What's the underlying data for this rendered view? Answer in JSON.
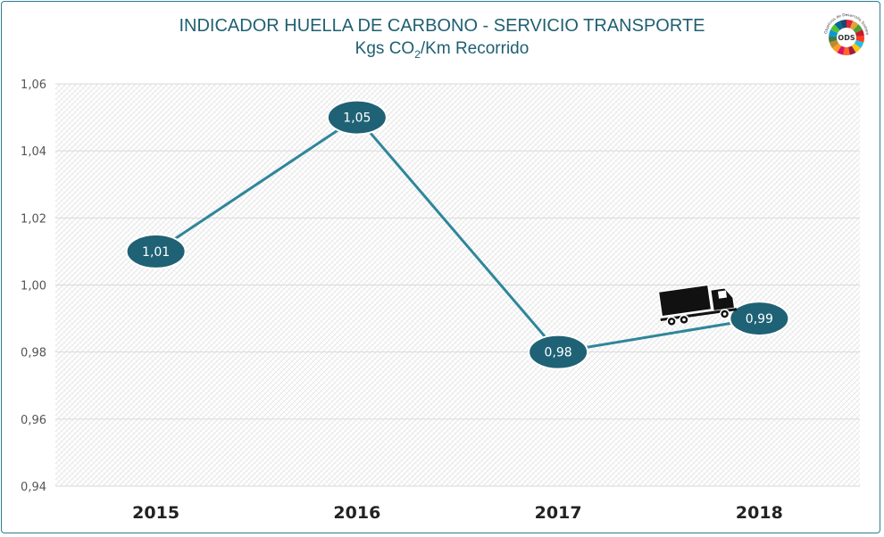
{
  "chart_data": {
    "type": "line",
    "title": "INDICADOR HUELLA DE CARBONO - SERVICIO TRANSPORTE",
    "subtitle_parts": {
      "before": "Kgs CO",
      "sub": "2",
      "after": "/Km Recorrido"
    },
    "categories": [
      "2015",
      "2016",
      "2017",
      "2018"
    ],
    "series": [
      {
        "values": [
          1.01,
          1.05,
          0.98,
          0.99
        ],
        "labels": [
          "1,01",
          "1,05",
          "0,98",
          "0,99"
        ]
      }
    ],
    "ylim": [
      0.94,
      1.06
    ],
    "yticks": [
      "0,94",
      "0,96",
      "0,98",
      "1,00",
      "1,02",
      "1,04",
      "1,06"
    ],
    "ytick_values": [
      0.94,
      0.96,
      0.98,
      1.0,
      1.02,
      1.04,
      1.06
    ],
    "grid": true,
    "legend": "none",
    "line_color": "#2e869a",
    "marker_color": "#1f6275",
    "label_color": "#ffffff",
    "annotation_icon": "truck-icon"
  },
  "logo": {
    "text": "ODS",
    "caption": "Objetivos de Desarrollo Sostenible",
    "icon": "ods-wheel-icon"
  },
  "colors": {
    "title": "#1f5f72",
    "axis_text": "#555555",
    "category_text": "#222222",
    "frame": "#2e7c8c"
  }
}
